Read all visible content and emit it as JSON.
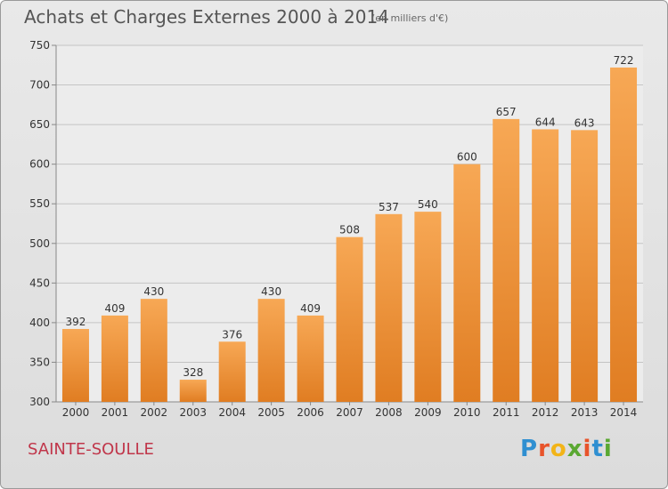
{
  "header": {
    "title": "Achats et Charges Externes 2000 à 2014",
    "subtitle": "(en milliers d'€)"
  },
  "footer": {
    "commune": "SAINTE-SOULLE",
    "logo_text": "Proxiti"
  },
  "colors": {
    "bar_light": "#f7a855",
    "bar_dark": "#e07d22",
    "commune_text": "#c0364a",
    "logo_letters": [
      "#2f8fd1",
      "#e8542b",
      "#f2b418",
      "#5aa832",
      "#e8542b",
      "#2f8fd1",
      "#5aa832"
    ]
  },
  "chart_data": {
    "type": "bar",
    "categories": [
      "2000",
      "2001",
      "2002",
      "2003",
      "2004",
      "2005",
      "2006",
      "2007",
      "2008",
      "2009",
      "2010",
      "2011",
      "2012",
      "2013",
      "2014"
    ],
    "values": [
      392,
      409,
      430,
      328,
      376,
      430,
      409,
      508,
      537,
      540,
      600,
      657,
      644,
      643,
      722
    ],
    "ylim": [
      300,
      750
    ],
    "yticks": [
      300,
      350,
      400,
      450,
      500,
      550,
      600,
      650,
      700,
      750
    ],
    "grid": true,
    "data_labels": true
  }
}
